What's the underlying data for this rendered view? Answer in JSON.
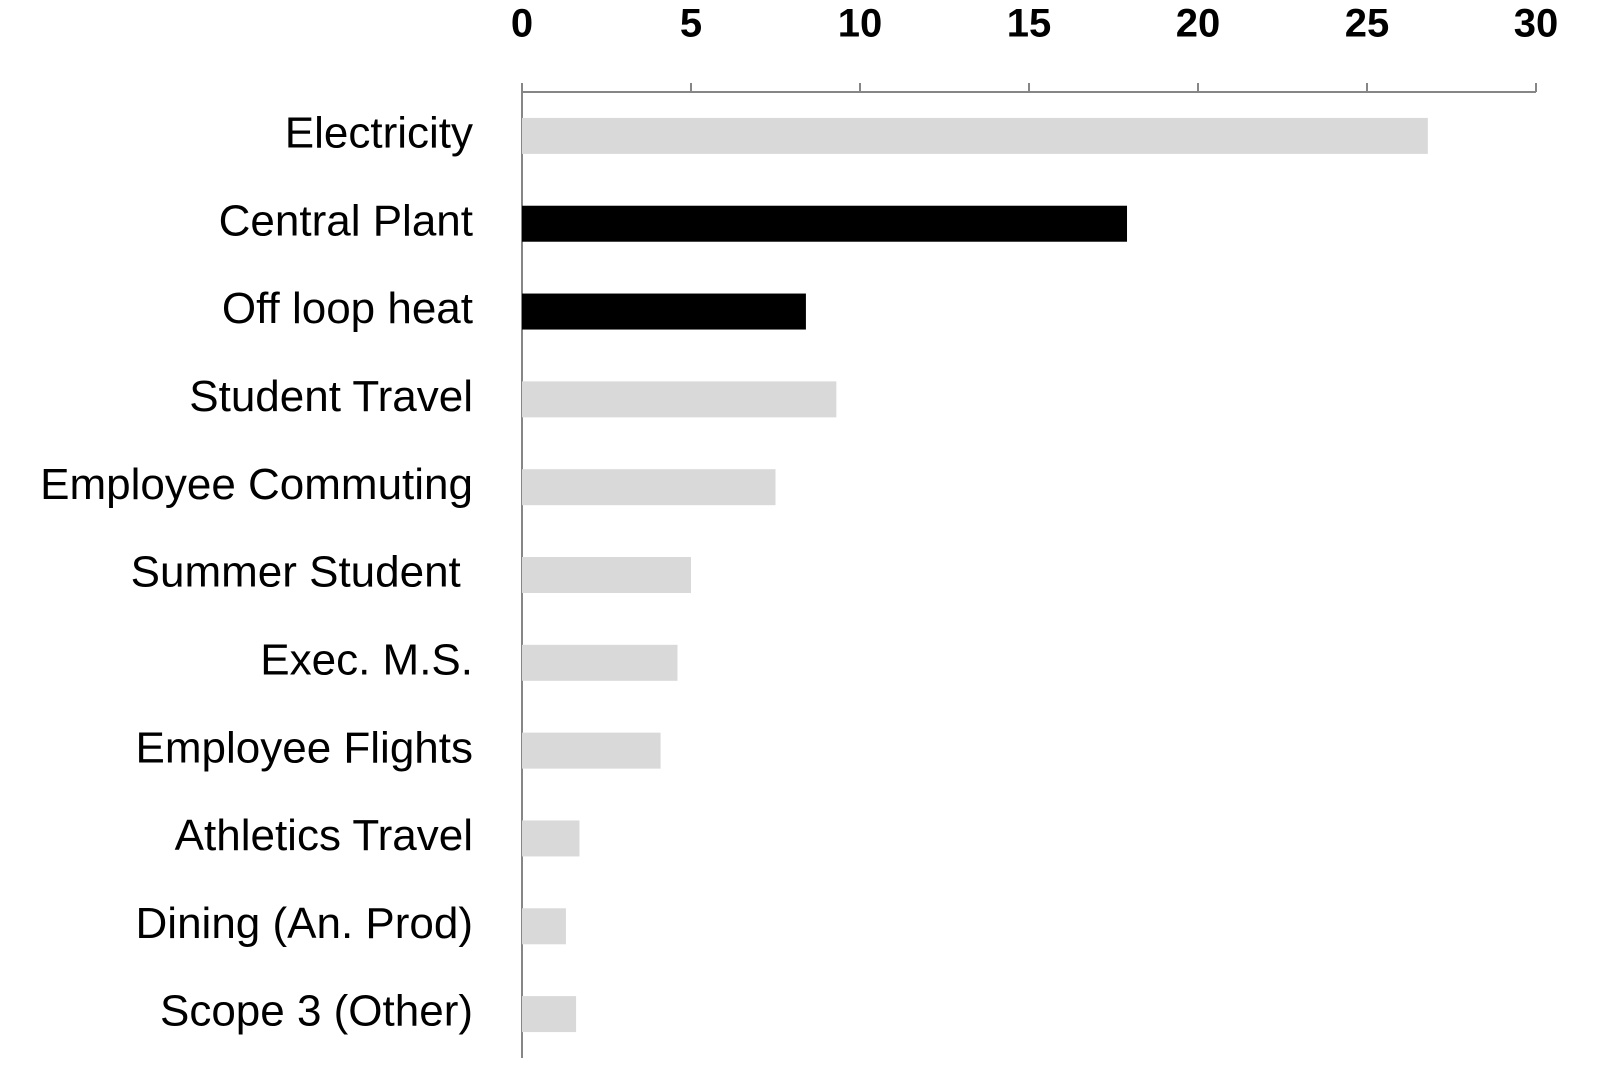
{
  "chart_data": {
    "type": "bar",
    "orientation": "horizontal",
    "categories": [
      "Electricity",
      "Central Plant",
      "Off loop heat",
      "Student Travel",
      "Employee Commuting",
      "Summer Student ",
      "Exec. M.S.",
      "Employee Flights",
      "Athletics Travel",
      "Dining (An. Prod)",
      "Scope 3 (Other)"
    ],
    "values": [
      26.8,
      17.9,
      8.4,
      9.3,
      7.5,
      5.0,
      4.6,
      4.1,
      1.7,
      1.3,
      1.6
    ],
    "colors": [
      "#d9d9d9",
      "#000000",
      "#000000",
      "#d9d9d9",
      "#d9d9d9",
      "#d9d9d9",
      "#d9d9d9",
      "#d9d9d9",
      "#d9d9d9",
      "#d9d9d9",
      "#d9d9d9"
    ],
    "xlim": [
      0,
      30
    ],
    "xticks": [
      0,
      5,
      10,
      15,
      20,
      25,
      30
    ],
    "grid": false
  }
}
